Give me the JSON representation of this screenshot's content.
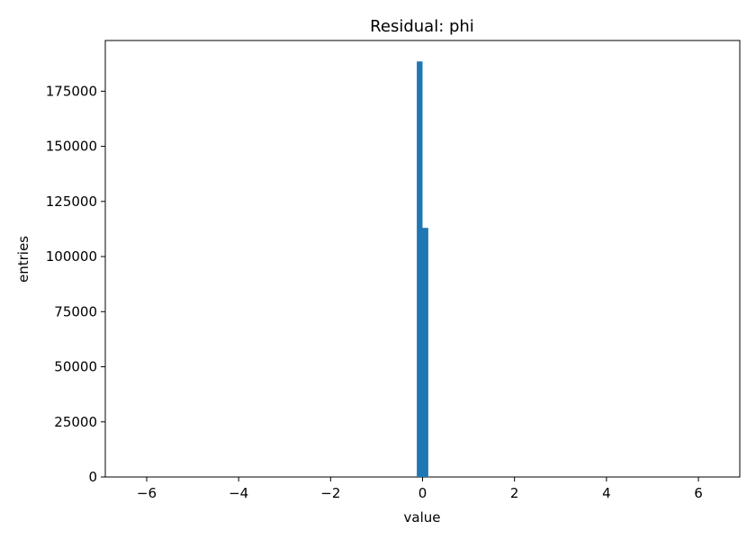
{
  "chart_data": {
    "type": "bar",
    "title": "Residual: phi",
    "xlabel": "value",
    "ylabel": "entries",
    "xlim": [
      -6.9,
      6.9
    ],
    "ylim": [
      0,
      198000
    ],
    "x_ticks": [
      -6,
      -4,
      -2,
      0,
      2,
      4,
      6
    ],
    "x_tick_labels": [
      "−6",
      "−4",
      "−2",
      "0",
      "2",
      "4",
      "6"
    ],
    "y_ticks": [
      0,
      25000,
      50000,
      75000,
      100000,
      125000,
      150000,
      175000
    ],
    "y_tick_labels": [
      "0",
      "25000",
      "50000",
      "75000",
      "100000",
      "125000",
      "150000",
      "175000"
    ],
    "bins": [
      {
        "x0": -0.125,
        "x1": 0.0,
        "value": 188500
      },
      {
        "x0": 0.0,
        "x1": 0.125,
        "value": 113000
      }
    ],
    "bar_color": "#1f77b4",
    "grid": false,
    "legend": "none"
  }
}
